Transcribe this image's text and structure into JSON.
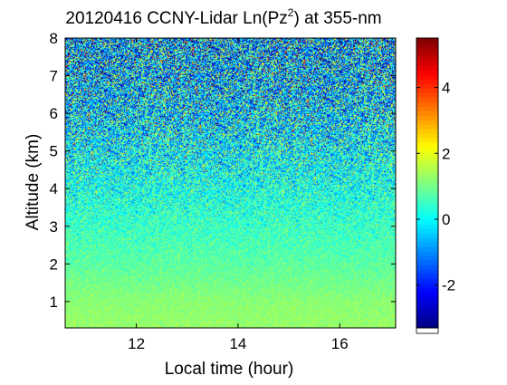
{
  "chart_data": {
    "type": "heatmap",
    "title": "20120416 CCNY-Lidar Ln(Pz",
    "title_superscript": "2",
    "title_suffix": ") at 355-nm",
    "xlabel": "Local time (hour)",
    "ylabel": "Altitude (km)",
    "xlim": [
      10.6,
      17.1
    ],
    "ylim": [
      0.3,
      8.0
    ],
    "x_ticks": [
      12,
      14,
      16
    ],
    "y_ticks": [
      1,
      2,
      3,
      4,
      5,
      6,
      7,
      8
    ],
    "colorbar": {
      "colormap": "jet",
      "range": [
        -3.3,
        5.5
      ],
      "ticks": [
        -2,
        0,
        2,
        4
      ]
    },
    "grid": false,
    "value_profile": [
      {
        "altitude": 0.3,
        "mean": 1.3,
        "spread": 0.2
      },
      {
        "altitude": 1.0,
        "mean": 1.2,
        "spread": 0.2
      },
      {
        "altitude": 2.0,
        "mean": 0.8,
        "spread": 0.3
      },
      {
        "altitude": 3.0,
        "mean": 0.5,
        "spread": 0.5
      },
      {
        "altitude": 4.0,
        "mean": 0.2,
        "spread": 0.8
      },
      {
        "altitude": 5.0,
        "mean": 0.0,
        "spread": 1.2
      },
      {
        "altitude": 6.0,
        "mean": -0.3,
        "spread": 1.6
      },
      {
        "altitude": 7.0,
        "mean": -0.5,
        "spread": 1.9
      },
      {
        "altitude": 8.0,
        "mean": -0.6,
        "spread": 2.1
      }
    ]
  }
}
